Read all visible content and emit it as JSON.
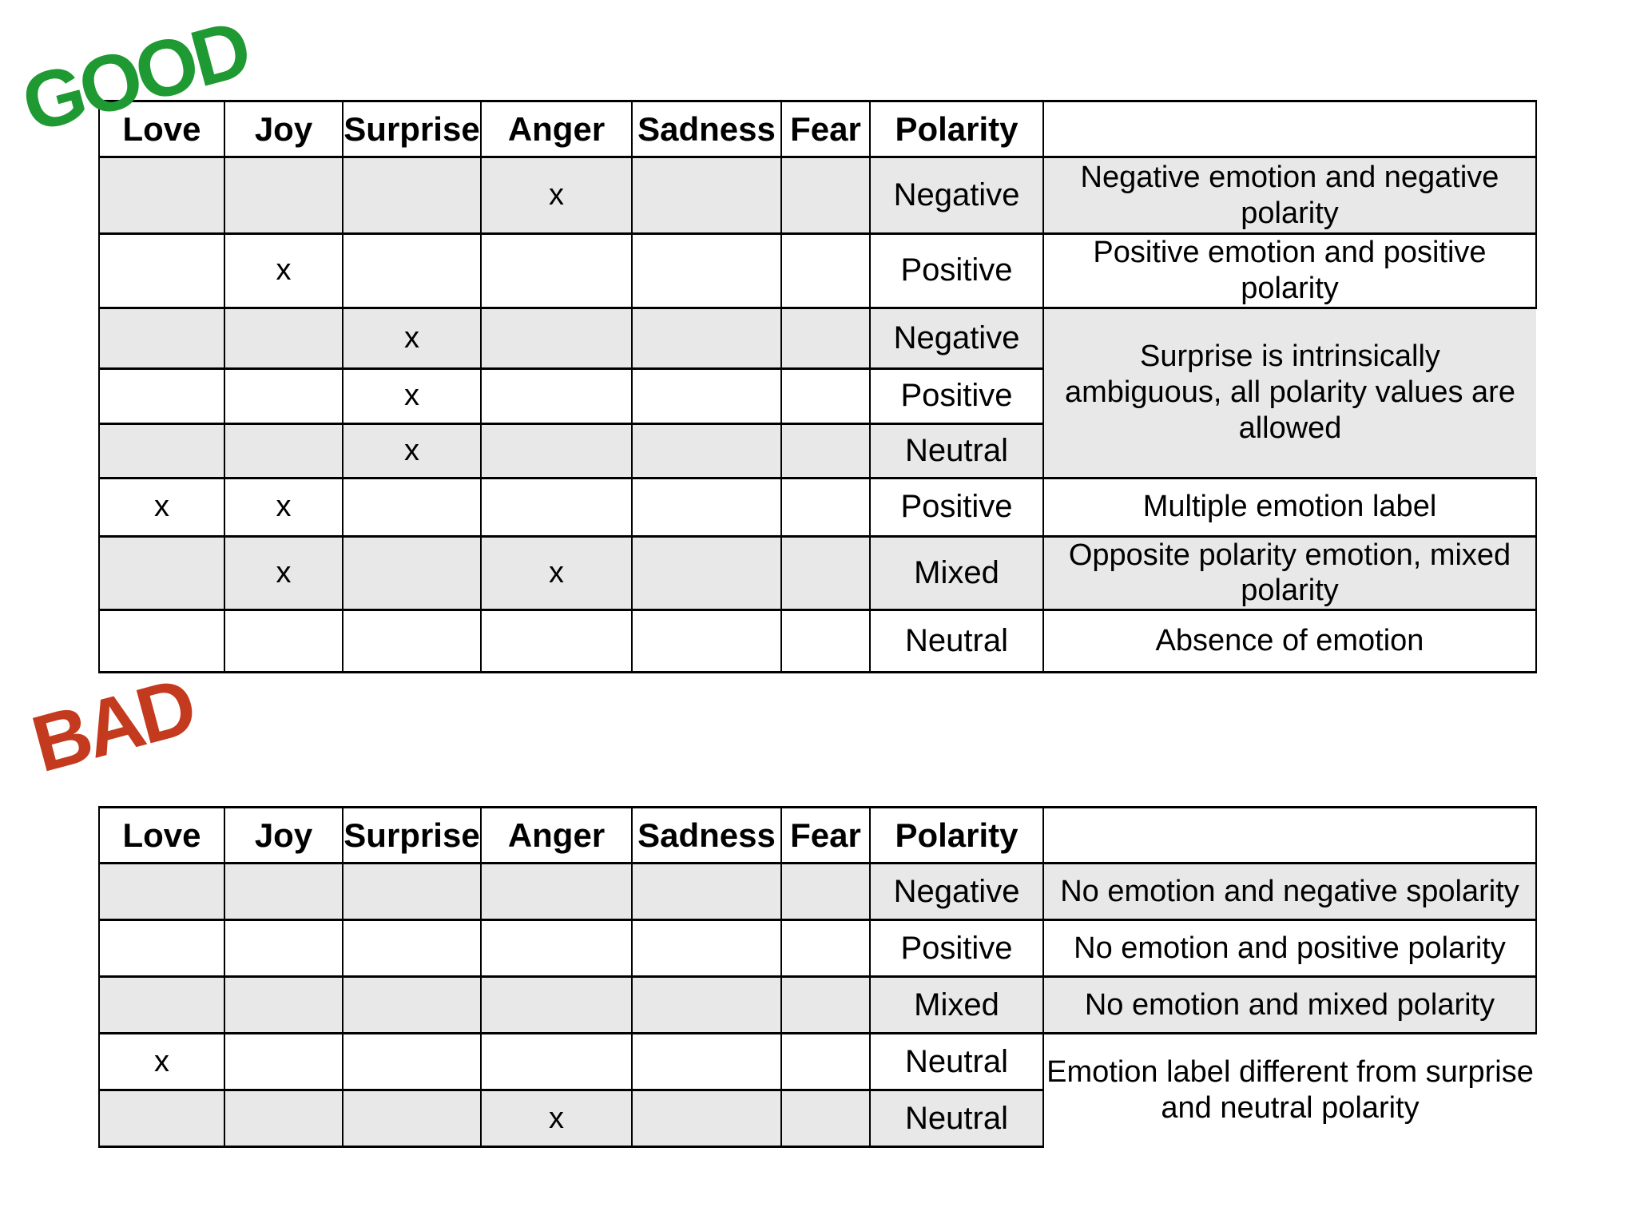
{
  "colors": {
    "good_label": "#1F9A32",
    "bad_label": "#C43A1E",
    "negative_text": "#FF0000",
    "positive_text": "#109310",
    "neutral_text": "#000000",
    "row_gray": "#E8E8E8",
    "row_white": "#FFFFFF",
    "border": "#000000"
  },
  "good_section": {
    "label": "GOOD",
    "table": {
      "columns": [
        "Love",
        "Joy",
        "Surprise",
        "Anger",
        "Sadness",
        "Fear",
        "Polarity",
        ""
      ],
      "rows": [
        {
          "marks": [
            "",
            "",
            "",
            "x",
            "",
            ""
          ],
          "polarity": {
            "text": "Negative",
            "tone": "negative"
          },
          "description": {
            "text": "Negative emotion and negative polarity"
          }
        },
        {
          "marks": [
            "",
            "x",
            "",
            "",
            "",
            ""
          ],
          "polarity": {
            "text": "Positive",
            "tone": "positive"
          },
          "description": {
            "text": "Positive emotion and positive polarity"
          }
        },
        {
          "marks": [
            "",
            "",
            "x",
            "",
            "",
            ""
          ],
          "polarity": {
            "text": "Negative",
            "tone": "negative"
          },
          "description": {
            "text": "Surprise is intrinsically ambiguous, all polarity values are allowed",
            "rowspan": 3,
            "merged": true
          }
        },
        {
          "marks": [
            "",
            "",
            "x",
            "",
            "",
            ""
          ],
          "polarity": {
            "text": "Positive",
            "tone": "positive"
          },
          "description": null
        },
        {
          "marks": [
            "",
            "",
            "x",
            "",
            "",
            ""
          ],
          "polarity": {
            "text": "Neutral",
            "tone": "neutral"
          },
          "description": null
        },
        {
          "marks": [
            "x",
            "x",
            "",
            "",
            "",
            ""
          ],
          "polarity": {
            "text": "Positive",
            "tone": "positive"
          },
          "description": {
            "text": "Multiple emotion label"
          }
        },
        {
          "marks": [
            "",
            "x",
            "",
            "x",
            "",
            ""
          ],
          "polarity": {
            "text": "Mixed",
            "tone": "neutral"
          },
          "description": {
            "text": "Opposite polarity emotion, mixed polarity"
          }
        },
        {
          "marks": [
            "",
            "",
            "",
            "",
            "",
            ""
          ],
          "polarity": {
            "text": "Neutral",
            "tone": "neutral"
          },
          "description": {
            "text": "Absence of emotion"
          }
        }
      ]
    }
  },
  "bad_section": {
    "label": "BAD",
    "table": {
      "columns": [
        "Love",
        "Joy",
        "Surprise",
        "Anger",
        "Sadness",
        "Fear",
        "Polarity",
        ""
      ],
      "rows": [
        {
          "marks": [
            "",
            "",
            "",
            "",
            "",
            ""
          ],
          "polarity": {
            "text": "Negative",
            "tone": "negative"
          },
          "description": {
            "text": "No emotion and negative spolarity"
          }
        },
        {
          "marks": [
            "",
            "",
            "",
            "",
            "",
            ""
          ],
          "polarity": {
            "text": "Positive",
            "tone": "positive"
          },
          "description": {
            "text": "No emotion and positive polarity"
          }
        },
        {
          "marks": [
            "",
            "",
            "",
            "",
            "",
            ""
          ],
          "polarity": {
            "text": "Mixed",
            "tone": "neutral"
          },
          "description": {
            "text": "No emotion and mixed polarity"
          }
        },
        {
          "marks": [
            "x",
            "",
            "",
            "",
            "",
            ""
          ],
          "polarity": {
            "text": "Neutral",
            "tone": "neutral"
          },
          "description": {
            "text": "Emotion label different from surprise and neutral polarity",
            "rowspan": 2,
            "merged": true
          }
        },
        {
          "marks": [
            "",
            "",
            "",
            "x",
            "",
            ""
          ],
          "polarity": {
            "text": "Neutral",
            "tone": "neutral"
          },
          "description": null
        }
      ]
    }
  }
}
